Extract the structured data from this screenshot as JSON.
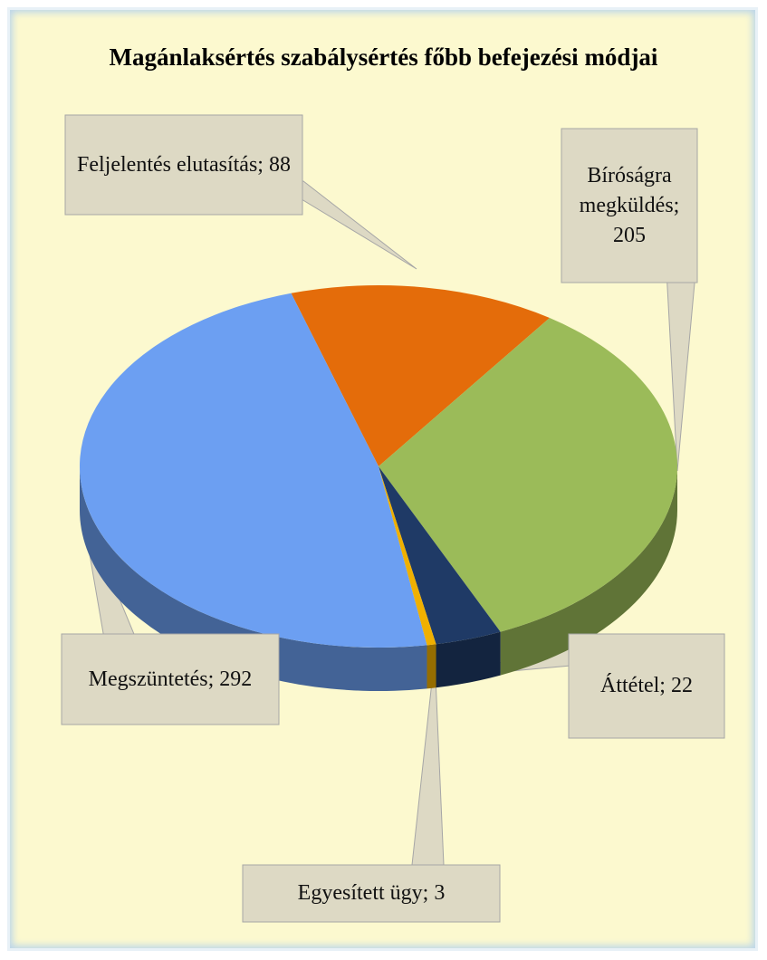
{
  "chart_data": {
    "type": "pie",
    "title": "Magánlaksértés szabálysértés főbb befejezési módjai",
    "values": [
      88,
      205,
      22,
      3,
      292
    ],
    "value_labels": [
      "Feljelentés elutasítás; 88",
      "Bíróságra megküldés; 205",
      "Áttétel; 22",
      "Egyesített ügy; 3",
      "Megszüntetés; 292"
    ],
    "colors": [
      "#e46c0a",
      "#9bbb59",
      "#1f3a66",
      "#f0b000",
      "#6c9ff2"
    ],
    "start_angle": -17
  }
}
